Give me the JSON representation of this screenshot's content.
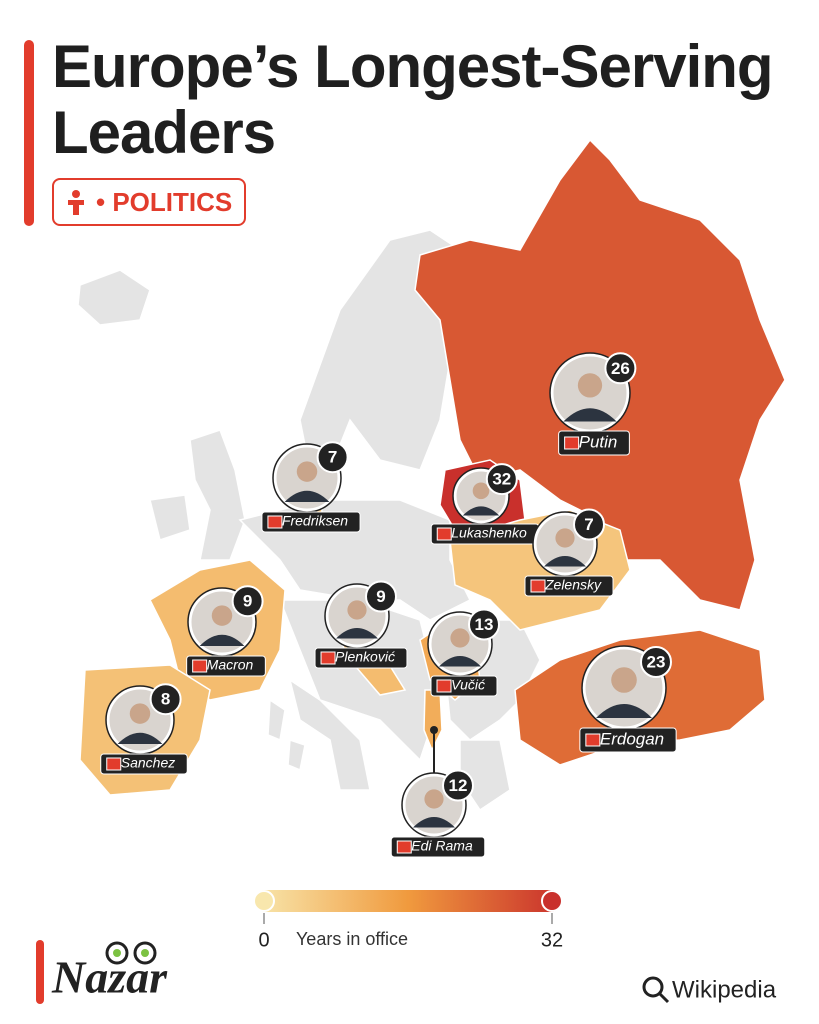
{
  "header": {
    "title": "Europe’s Longest-Serving Leaders",
    "tag": "• POLITICS"
  },
  "leaders": [
    {
      "name": "Putin",
      "years": 26
    },
    {
      "name": "Lukashenko",
      "years": 32
    },
    {
      "name": "Erdogan",
      "years": 23
    },
    {
      "name": "Vučić",
      "years": 13
    },
    {
      "name": "Edi Rama",
      "years": 12
    },
    {
      "name": "Macron",
      "years": 9
    },
    {
      "name": "Plenković",
      "years": 9
    },
    {
      "name": "Sanchez",
      "years": 8
    },
    {
      "name": "Fredriksen",
      "years": 7
    },
    {
      "name": "Zelensky",
      "years": 7
    }
  ],
  "legend": {
    "label": "Years in office",
    "min": 0,
    "max": 32,
    "colors": [
      "#f8e7ad",
      "#f09a3e",
      "#c9302c"
    ]
  },
  "brand": "Nazar",
  "source": "Wikipedia"
}
